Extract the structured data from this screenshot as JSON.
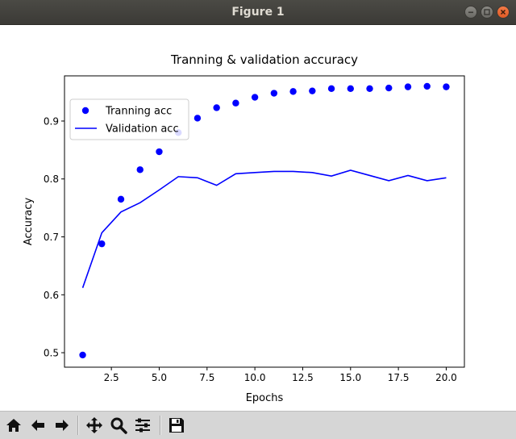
{
  "window": {
    "title": "Figure 1"
  },
  "chart_data": {
    "type": "line",
    "title": "Tranning & validation accuracy",
    "xlabel": "Epochs",
    "ylabel": "Accuracy",
    "xlim": [
      0.05,
      20.95
    ],
    "ylim": [
      0.475,
      0.978
    ],
    "x_ticks": [
      2.5,
      5.0,
      7.5,
      10.0,
      12.5,
      15.0,
      17.5,
      20.0
    ],
    "x_tick_labels": [
      "2.5",
      "5.0",
      "7.5",
      "10.0",
      "12.5",
      "15.0",
      "17.5",
      "20.0"
    ],
    "y_ticks": [
      0.5,
      0.6,
      0.7,
      0.8,
      0.9
    ],
    "y_tick_labels": [
      "0.5",
      "0.6",
      "0.7",
      "0.8",
      "0.9"
    ],
    "grid": false,
    "legend_position": "top-left",
    "x": [
      1,
      2,
      3,
      4,
      5,
      6,
      7,
      8,
      9,
      10,
      11,
      12,
      13,
      14,
      15,
      16,
      17,
      18,
      19,
      20
    ],
    "series": [
      {
        "name": "Tranning acc",
        "style": "points",
        "color": "#0000ff",
        "values": [
          0.496,
          0.688,
          0.765,
          0.816,
          0.847,
          0.88,
          0.905,
          0.923,
          0.931,
          0.941,
          0.948,
          0.951,
          0.952,
          0.956,
          0.956,
          0.956,
          0.957,
          0.959,
          0.96,
          0.959
        ]
      },
      {
        "name": "Validation acc",
        "style": "line",
        "color": "#0000ff",
        "values": [
          0.612,
          0.707,
          0.743,
          0.759,
          0.781,
          0.804,
          0.802,
          0.789,
          0.809,
          0.811,
          0.813,
          0.813,
          0.811,
          0.805,
          0.815,
          0.806,
          0.797,
          0.806,
          0.797,
          0.802
        ]
      }
    ]
  },
  "toolbar": {
    "buttons": [
      "home-icon",
      "back-icon",
      "forward-icon",
      "pan-icon",
      "zoom-icon",
      "configure-subplots-icon",
      "save-icon"
    ]
  }
}
